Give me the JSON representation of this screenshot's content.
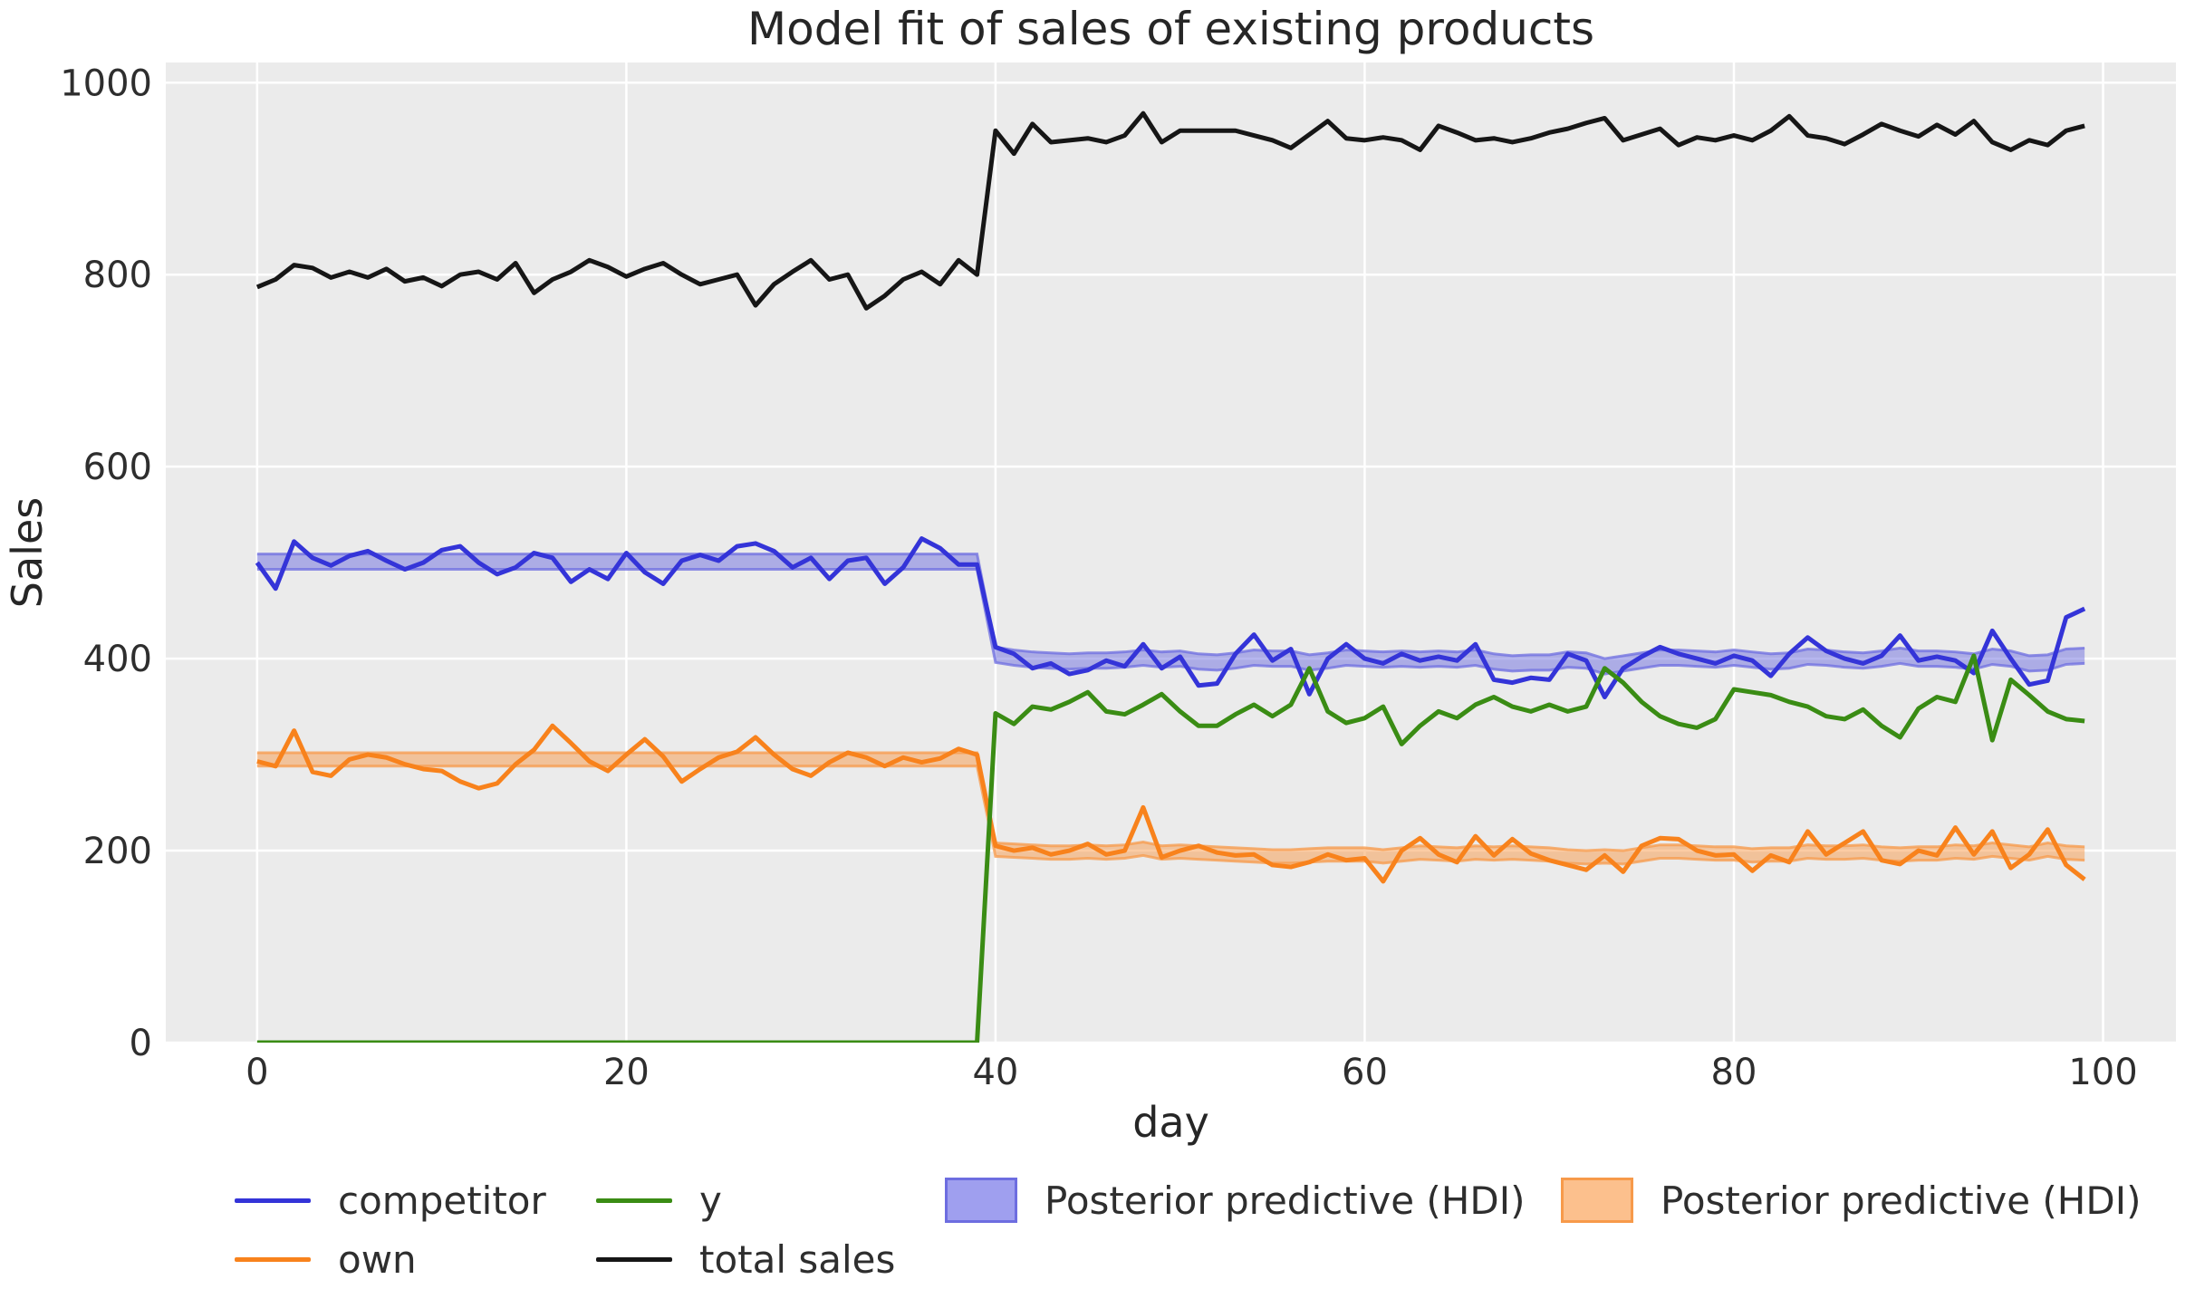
{
  "style": {
    "figure_bg": "#ffffff",
    "axes_bg": "#ebebeb",
    "grid_color": "#ffffff",
    "text_color": "#2e2e2e"
  },
  "chart_data": {
    "type": "line",
    "title": "Model fit of sales of existing products",
    "xlabel": "day",
    "ylabel": "Sales",
    "x_ticks": [
      0,
      20,
      40,
      60,
      80,
      100
    ],
    "y_ticks": [
      0,
      200,
      400,
      600,
      800,
      1000
    ],
    "xlim": [
      -4.95,
      103.95
    ],
    "ylim": [
      0,
      1021
    ],
    "grid": true,
    "legend_position": "bottom",
    "x": {
      "start": 0,
      "step": 1,
      "count": 100
    },
    "series": [
      {
        "name": "competitor",
        "color": "#3434d8",
        "values": [
          500,
          473,
          522,
          505,
          497,
          507,
          512,
          502,
          493,
          500,
          513,
          517,
          500,
          488,
          495,
          510,
          505,
          480,
          493,
          483,
          510,
          490,
          478,
          502,
          508,
          502,
          517,
          520,
          512,
          495,
          505,
          483,
          502,
          505,
          478,
          495,
          525,
          515,
          498,
          498,
          412,
          405,
          390,
          395,
          384,
          388,
          398,
          392,
          415,
          390,
          402,
          372,
          374,
          405,
          425,
          398,
          410,
          363,
          400,
          415,
          400,
          395,
          405,
          398,
          402,
          398,
          415,
          378,
          375,
          380,
          378,
          405,
          398,
          360,
          390,
          402,
          412,
          405,
          400,
          395,
          403,
          398,
          382,
          405,
          422,
          408,
          400,
          395,
          403,
          424,
          398,
          402,
          398,
          385,
          429,
          400,
          373,
          377,
          443,
          452
        ]
      },
      {
        "name": "own",
        "color": "#f8821c",
        "values": [
          293,
          288,
          325,
          282,
          278,
          295,
          300,
          297,
          290,
          285,
          283,
          272,
          265,
          270,
          290,
          305,
          330,
          312,
          293,
          283,
          300,
          316,
          298,
          272,
          285,
          297,
          303,
          318,
          300,
          285,
          278,
          292,
          302,
          297,
          288,
          297,
          292,
          296,
          306,
          300,
          205,
          200,
          203,
          196,
          200,
          207,
          196,
          200,
          245,
          193,
          200,
          205,
          198,
          195,
          196,
          185,
          183,
          188,
          196,
          190,
          192,
          168,
          200,
          213,
          196,
          188,
          215,
          195,
          212,
          197,
          190,
          185,
          180,
          195,
          178,
          205,
          213,
          212,
          200,
          195,
          196,
          179,
          195,
          188,
          220,
          196,
          208,
          220,
          190,
          186,
          200,
          195,
          224,
          196,
          220,
          182,
          196,
          222,
          185,
          170
        ]
      },
      {
        "name": "y",
        "color": "#3a8c14",
        "values": [
          0,
          0,
          0,
          0,
          0,
          0,
          0,
          0,
          0,
          0,
          0,
          0,
          0,
          0,
          0,
          0,
          0,
          0,
          0,
          0,
          0,
          0,
          0,
          0,
          0,
          0,
          0,
          0,
          0,
          0,
          0,
          0,
          0,
          0,
          0,
          0,
          0,
          0,
          0,
          0,
          343,
          332,
          350,
          347,
          355,
          365,
          345,
          342,
          352,
          363,
          345,
          330,
          330,
          342,
          352,
          340,
          352,
          390,
          345,
          333,
          338,
          350,
          311,
          330,
          345,
          338,
          352,
          360,
          350,
          345,
          352,
          345,
          350,
          390,
          375,
          355,
          340,
          332,
          328,
          337,
          368,
          365,
          362,
          355,
          350,
          340,
          337,
          347,
          330,
          318,
          348,
          360,
          355,
          403,
          315,
          378,
          362,
          345,
          337,
          335
        ]
      },
      {
        "name": "total sales",
        "color": "#161616",
        "values": [
          787,
          795,
          810,
          807,
          797,
          803,
          797,
          806,
          793,
          797,
          788,
          800,
          803,
          795,
          812,
          781,
          795,
          803,
          815,
          808,
          798,
          806,
          812,
          800,
          790,
          795,
          800,
          768,
          790,
          803,
          815,
          795,
          800,
          765,
          778,
          795,
          803,
          790,
          815,
          800,
          950,
          926,
          957,
          938,
          940,
          942,
          938,
          945,
          968,
          938,
          950,
          950,
          950,
          950,
          945,
          940,
          932,
          946,
          960,
          942,
          940,
          943,
          940,
          930,
          955,
          948,
          940,
          942,
          938,
          942,
          948,
          952,
          958,
          963,
          940,
          946,
          952,
          935,
          943,
          940,
          945,
          940,
          950,
          965,
          945,
          942,
          936,
          946,
          957,
          950,
          944,
          956,
          946,
          960,
          938,
          930,
          940,
          935,
          950,
          955
        ]
      }
    ],
    "bands": [
      {
        "name": "Posterior predictive (HDI) competitor",
        "color": "#6d6de0",
        "fill_opacity": 0.5,
        "halfwidth": 8,
        "center": [
          501,
          501,
          501,
          501,
          501,
          501,
          501,
          501,
          501,
          501,
          501,
          501,
          501,
          501,
          501,
          501,
          501,
          501,
          501,
          501,
          501,
          501,
          501,
          501,
          501,
          501,
          501,
          501,
          501,
          501,
          501,
          501,
          501,
          501,
          501,
          501,
          501,
          501,
          501,
          501,
          404,
          401,
          399,
          398,
          397,
          398,
          398,
          399,
          401,
          399,
          400,
          397,
          396,
          398,
          401,
          400,
          400,
          396,
          398,
          401,
          400,
          399,
          400,
          399,
          400,
          399,
          401,
          397,
          395,
          396,
          396,
          399,
          398,
          392,
          395,
          398,
          401,
          401,
          400,
          399,
          401,
          399,
          397,
          398,
          402,
          401,
          399,
          398,
          400,
          403,
          400,
          400,
          399,
          397,
          402,
          400,
          395,
          396,
          402,
          403
        ]
      },
      {
        "name": "Posterior predictive (HDI) own",
        "color": "#f79a4a",
        "fill_opacity": 0.5,
        "halfwidth": 7,
        "center": [
          295,
          295,
          295,
          295,
          295,
          295,
          295,
          295,
          295,
          295,
          295,
          295,
          295,
          295,
          295,
          295,
          295,
          295,
          295,
          295,
          295,
          295,
          295,
          295,
          295,
          295,
          295,
          295,
          295,
          295,
          295,
          295,
          295,
          295,
          295,
          295,
          295,
          295,
          295,
          295,
          201,
          200,
          199,
          198,
          198,
          199,
          198,
          199,
          202,
          198,
          199,
          198,
          197,
          196,
          195,
          194,
          194,
          195,
          196,
          196,
          196,
          194,
          196,
          198,
          197,
          196,
          198,
          197,
          198,
          197,
          196,
          194,
          193,
          194,
          193,
          196,
          199,
          199,
          198,
          197,
          197,
          195,
          196,
          196,
          199,
          198,
          198,
          199,
          197,
          196,
          197,
          197,
          199,
          198,
          201,
          199,
          197,
          201,
          198,
          197
        ]
      }
    ]
  },
  "legend": {
    "entries": [
      {
        "label": "competitor",
        "type": "line",
        "color": "#3434d8"
      },
      {
        "label": "own",
        "type": "line",
        "color": "#f8821c"
      },
      {
        "label": "y",
        "type": "line",
        "color": "#3a8c14"
      },
      {
        "label": "total sales",
        "type": "line",
        "color": "#161616"
      },
      {
        "label": "Posterior predictive (HDI)",
        "type": "patch",
        "fill": "#9f9fef",
        "border": "#6d6de0"
      },
      {
        "label": "Posterior predictive (HDI)",
        "type": "patch",
        "fill": "#fcc08d",
        "border": "#f79a4a"
      }
    ]
  }
}
